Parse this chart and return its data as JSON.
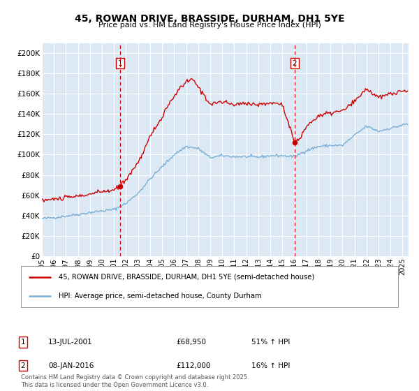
{
  "title": "45, ROWAN DRIVE, BRASSIDE, DURHAM, DH1 5YE",
  "subtitle": "Price paid vs. HM Land Registry's House Price Index (HPI)",
  "ylabel_ticks": [
    "£0",
    "£20K",
    "£40K",
    "£60K",
    "£80K",
    "£100K",
    "£120K",
    "£140K",
    "£160K",
    "£180K",
    "£200K"
  ],
  "ytick_values": [
    0,
    20000,
    40000,
    60000,
    80000,
    100000,
    120000,
    140000,
    160000,
    180000,
    200000
  ],
  "ylim": [
    0,
    210000
  ],
  "xlim_start": 1995.0,
  "xlim_end": 2025.5,
  "sale1_date": 2001.53,
  "sale1_price": 68950,
  "sale1_label": "1",
  "sale2_date": 2016.03,
  "sale2_price": 112000,
  "sale2_label": "2",
  "legend_line1": "45, ROWAN DRIVE, BRASSIDE, DURHAM, DH1 5YE (semi-detached house)",
  "legend_line2": "HPI: Average price, semi-detached house, County Durham",
  "footer": "Contains HM Land Registry data © Crown copyright and database right 2025.\nThis data is licensed under the Open Government Licence v3.0.",
  "bg_color": "#dce9f5",
  "red_color": "#cc0000",
  "blue_color": "#7aafd4",
  "grid_color": "#ffffff",
  "dashed_line_color": "#cc0000"
}
